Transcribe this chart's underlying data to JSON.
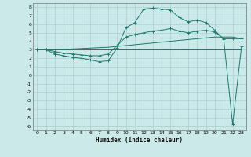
{
  "xlabel": "Humidex (Indice chaleur)",
  "bg_color": "#cce9e9",
  "line_color": "#1a7a6e",
  "grid_color": "#aacfcf",
  "xlim": [
    -0.5,
    23.5
  ],
  "ylim": [
    -6.5,
    8.5
  ],
  "xticks": [
    0,
    1,
    2,
    3,
    4,
    5,
    6,
    7,
    8,
    9,
    10,
    11,
    12,
    13,
    14,
    15,
    16,
    17,
    18,
    19,
    20,
    21,
    22,
    23
  ],
  "yticks": [
    8,
    7,
    6,
    5,
    4,
    3,
    2,
    1,
    0,
    -1,
    -2,
    -3,
    -4,
    -5,
    -6
  ],
  "line1_x": [
    0,
    1,
    2,
    3,
    4,
    5,
    6,
    7,
    8,
    9,
    10,
    11,
    12,
    13,
    14,
    15,
    16,
    17,
    18,
    19,
    20,
    21,
    22,
    23
  ],
  "line1_y": [
    3.0,
    3.0,
    3.0,
    3.0,
    3.0,
    3.0,
    3.0,
    3.0,
    3.0,
    3.0,
    3.0,
    3.0,
    3.0,
    3.0,
    3.0,
    3.0,
    3.0,
    3.0,
    3.0,
    3.0,
    3.0,
    3.0,
    3.0,
    3.0
  ],
  "line2_x": [
    0,
    1,
    2,
    3,
    4,
    5,
    6,
    7,
    8,
    9,
    10,
    11,
    12,
    13,
    14,
    15,
    16,
    17,
    18,
    19,
    20,
    21,
    22,
    23
  ],
  "line2_y": [
    3.0,
    3.0,
    3.0,
    3.05,
    3.1,
    3.15,
    3.2,
    3.25,
    3.3,
    3.4,
    3.5,
    3.6,
    3.7,
    3.8,
    3.9,
    4.0,
    4.1,
    4.2,
    4.3,
    4.4,
    4.5,
    4.5,
    4.5,
    4.3
  ],
  "line3_x": [
    0,
    1,
    2,
    3,
    4,
    5,
    6,
    7,
    8,
    9,
    10,
    11,
    12,
    13,
    14,
    15,
    16,
    17,
    18,
    19,
    20,
    21,
    22,
    23
  ],
  "line3_y": [
    3.0,
    3.0,
    2.8,
    2.6,
    2.5,
    2.4,
    2.3,
    2.3,
    2.5,
    3.5,
    4.5,
    4.8,
    5.0,
    5.2,
    5.3,
    5.5,
    5.2,
    5.0,
    5.2,
    5.3,
    5.1,
    4.3,
    4.3,
    4.3
  ],
  "line4_x": [
    0,
    1,
    2,
    3,
    4,
    5,
    6,
    7,
    8,
    9,
    10,
    11,
    12,
    13,
    14,
    15,
    16,
    17,
    18,
    19,
    20,
    21,
    22,
    23
  ],
  "line4_y": [
    3.0,
    3.0,
    2.5,
    2.3,
    2.1,
    2.0,
    1.8,
    1.6,
    1.7,
    3.2,
    5.6,
    6.2,
    7.8,
    7.9,
    7.8,
    7.7,
    6.8,
    6.3,
    6.5,
    6.2,
    5.3,
    4.2,
    -5.8,
    3.4
  ]
}
